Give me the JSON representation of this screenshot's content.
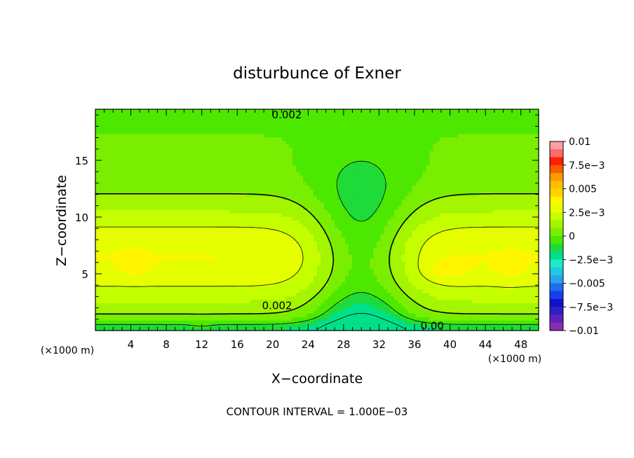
{
  "chart_data": {
    "type": "heatmap",
    "title": "disturbunce of Exner",
    "xlabel": "X−coordinate",
    "ylabel": "Z−coordinate",
    "x_unit_left": "(×1000 m)",
    "x_unit_right": "(×1000 m)",
    "footer": "CONTOUR INTERVAL = 1.000E−03",
    "xlim": [
      0,
      50
    ],
    "ylim": [
      0,
      19.5
    ],
    "xticks": [
      4,
      8,
      12,
      16,
      20,
      24,
      28,
      32,
      36,
      40,
      44,
      48
    ],
    "xtick_labels": [
      "4",
      "8",
      "12",
      "16",
      "20",
      "24",
      "28",
      "32",
      "36",
      "40",
      "44",
      "48"
    ],
    "yticks": [
      5,
      10,
      15
    ],
    "ytick_labels": [
      "5",
      "10",
      "15"
    ],
    "colorbar": {
      "ticks": [
        0.01,
        0.0075,
        0.005,
        0.0025,
        0,
        -0.0025,
        -0.005,
        -0.0075,
        -0.01
      ],
      "labels": [
        "0.01",
        "7.5e−3",
        "0.005",
        "2.5e−3",
        "0",
        "−2.5e−3",
        "−0.005",
        "−7.5e−3",
        "−0.01"
      ],
      "colors": [
        "#ff9f9f",
        "#ff6a6a",
        "#ff1e00",
        "#ff5a00",
        "#ff9900",
        "#ffbf00",
        "#ffd200",
        "#fff500",
        "#e6ff00",
        "#c4ff00",
        "#a4f500",
        "#7aee00",
        "#4ce800",
        "#1edb3a",
        "#00e08a",
        "#1eeacb",
        "#20c8e6",
        "#2ba2ea",
        "#1a6ef0",
        "#1a3cf0",
        "#1010d0",
        "#3020c0",
        "#6020c0",
        "#8a2ab8"
      ]
    },
    "field_levels": [
      {
        "value": 0.0005,
        "color": "#1edb3a"
      },
      {
        "value": 0.001,
        "color": "#4ce800"
      },
      {
        "value": 0.0015,
        "color": "#7aee00"
      },
      {
        "value": 0.002,
        "color": "#a4f500"
      },
      {
        "value": 0.0025,
        "color": "#c4ff00"
      },
      {
        "value": 0.003,
        "color": "#e6ff00"
      },
      {
        "value": 0.0035,
        "color": "#fff500"
      },
      {
        "value": 0.004,
        "color": "#ffd200"
      }
    ],
    "contour_labels": [
      {
        "text": "0.002",
        "x": 21.6,
        "y": 19.0
      },
      {
        "text": "0.002",
        "x": 20.5,
        "y": 2.2
      },
      {
        "text": "0.00",
        "x": 38.0,
        "y": 0.4
      }
    ]
  }
}
